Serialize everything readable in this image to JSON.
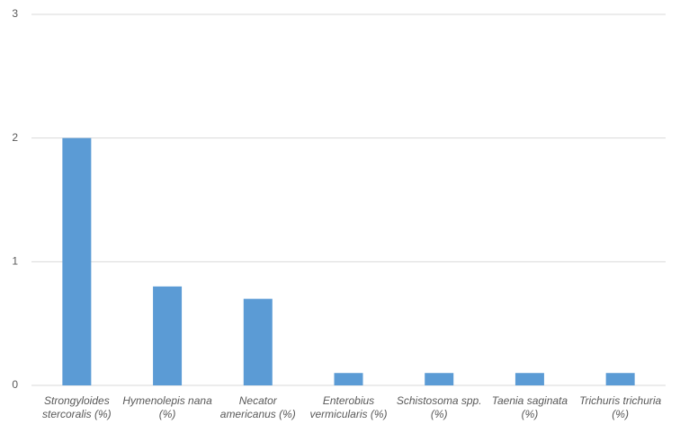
{
  "chart_data": {
    "type": "bar",
    "categories": [
      "Strongyloides stercoralis (%)",
      "Hymenolepis nana (%)",
      "Necator americanus (%)",
      "Enterobius vermicularis (%)",
      "Schistosoma spp. (%)",
      "Taenia saginata (%)",
      "Trichuris trichuria (%)"
    ],
    "values": [
      2,
      0.8,
      0.7,
      0.1,
      0.1,
      0.1,
      0.1
    ],
    "color": "#5b9bd5",
    "ylim": [
      0,
      3
    ],
    "yticks": [
      0,
      1,
      2,
      3
    ],
    "grid": true
  }
}
